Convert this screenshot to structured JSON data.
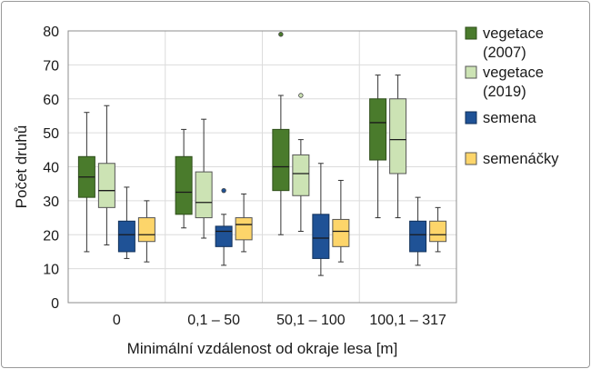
{
  "chart_data": {
    "type": "box",
    "title": "",
    "xlabel": "Minimální vzdálenost od okraje lesa [m]",
    "ylabel": "Počet druhů",
    "ylim": [
      0,
      80
    ],
    "yticks": [
      "0",
      "10",
      "20",
      "30",
      "40",
      "50",
      "60",
      "70",
      "80"
    ],
    "categories": [
      "0",
      "0,1 – 50",
      "50,1 – 100",
      "100,1 – 317"
    ],
    "grid": true,
    "legend_position": "right",
    "series": [
      {
        "name": "vegetace (2007)",
        "legend_lines": [
          "vegetace",
          "(2007)"
        ],
        "color": "#4a7b2c",
        "stroke": "#2f4f1a",
        "boxes": [
          {
            "min": 15,
            "q1": 31,
            "median": 37,
            "q3": 43,
            "max": 56,
            "outliers": []
          },
          {
            "min": 22,
            "q1": 26,
            "median": 32.5,
            "q3": 43,
            "max": 51,
            "outliers": []
          },
          {
            "min": 20,
            "q1": 33,
            "median": 40,
            "q3": 51,
            "max": 61,
            "outliers": [
              79
            ]
          },
          {
            "min": 25,
            "q1": 42,
            "median": 53,
            "q3": 60,
            "max": 67,
            "outliers": []
          }
        ]
      },
      {
        "name": "vegetace (2019)",
        "legend_lines": [
          "vegetace",
          "(2019)"
        ],
        "color": "#cce3b4",
        "stroke": "#555555",
        "boxes": [
          {
            "min": 17,
            "q1": 28,
            "median": 33,
            "q3": 41,
            "max": 58,
            "outliers": []
          },
          {
            "min": 19,
            "q1": 25,
            "median": 29.5,
            "q3": 38.5,
            "max": 54,
            "outliers": []
          },
          {
            "min": 21,
            "q1": 31.5,
            "median": 38,
            "q3": 43.5,
            "max": 48,
            "outliers": [
              61
            ]
          },
          {
            "min": 25,
            "q1": 38,
            "median": 48,
            "q3": 60,
            "max": 67,
            "outliers": []
          }
        ]
      },
      {
        "name": "semena",
        "legend_lines": [
          "semena"
        ],
        "color": "#1f5296",
        "stroke": "#10305a",
        "boxes": [
          {
            "min": 13,
            "q1": 15,
            "median": 20,
            "q3": 24,
            "max": 34,
            "outliers": []
          },
          {
            "min": 11,
            "q1": 16.5,
            "median": 21,
            "q3": 22.5,
            "max": 26,
            "outliers": [
              33
            ]
          },
          {
            "min": 8,
            "q1": 13,
            "median": 19,
            "q3": 26,
            "max": 41,
            "outliers": []
          },
          {
            "min": 11,
            "q1": 15,
            "median": 20,
            "q3": 24,
            "max": 31,
            "outliers": []
          }
        ]
      },
      {
        "name": "semenáčky",
        "legend_lines": [
          "semenáčky"
        ],
        "color": "#fdd56a",
        "stroke": "#555555",
        "boxes": [
          {
            "min": 12,
            "q1": 18,
            "median": 20,
            "q3": 25,
            "max": 30,
            "outliers": []
          },
          {
            "min": 15,
            "q1": 18.5,
            "median": 23,
            "q3": 25,
            "max": 32,
            "outliers": []
          },
          {
            "min": 12,
            "q1": 16.5,
            "median": 21,
            "q3": 24.5,
            "max": 36,
            "outliers": []
          },
          {
            "min": 15,
            "q1": 18,
            "median": 20,
            "q3": 24,
            "max": 28,
            "outliers": []
          }
        ]
      }
    ]
  }
}
